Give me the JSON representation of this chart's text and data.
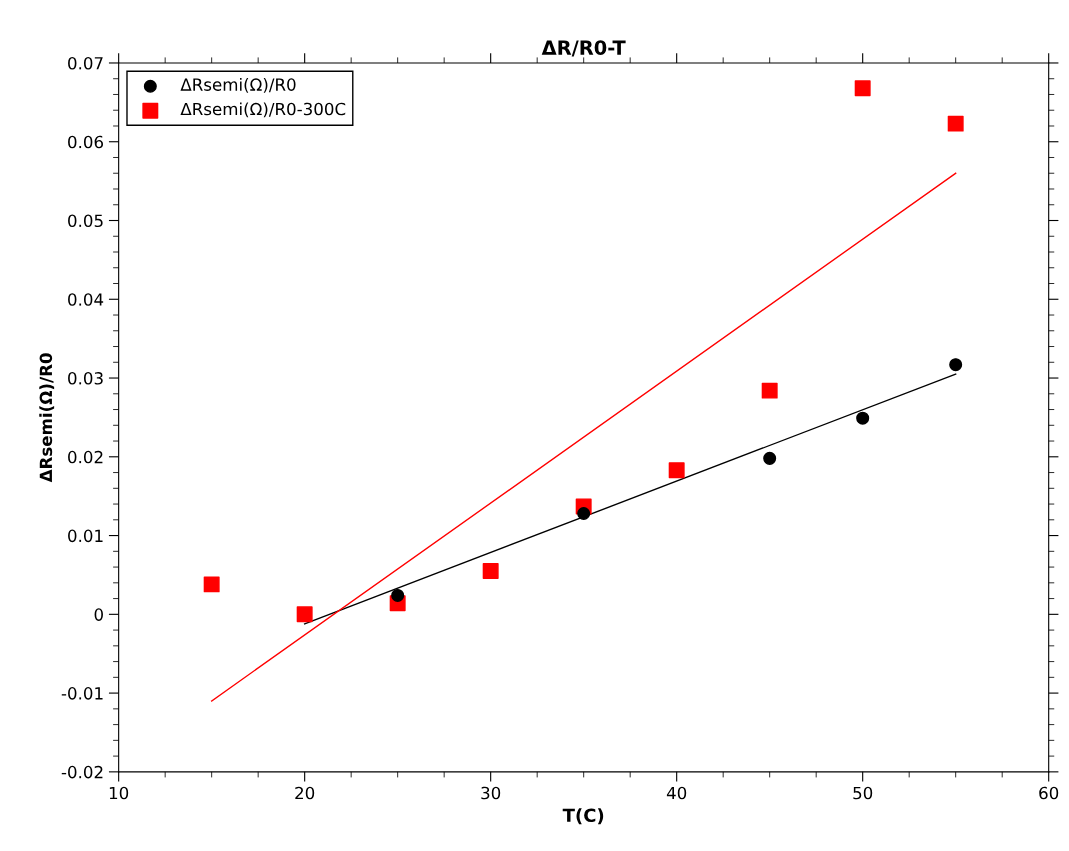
{
  "chart_data": {
    "type": "scatter",
    "title": "ΔR/R0-T",
    "xlabel": "T(C)",
    "ylabel": "ΔRsemi(Ω)/R0",
    "x": [
      15,
      20,
      25,
      30,
      35,
      40,
      45,
      50,
      55
    ],
    "series": [
      {
        "name": "ΔRsemi(Ω)/R0",
        "color": "#000000",
        "marker": "circle",
        "x": [
          25,
          35,
          45,
          50,
          55
        ],
        "values": [
          0.0024,
          0.0128,
          0.0198,
          0.0249,
          0.0317
        ]
      },
      {
        "name": "ΔRsemi(Ω)/R0-300C",
        "color": "#ff0000",
        "marker": "square",
        "values": [
          0.0038,
          0.0,
          0.0014,
          0.0055,
          0.0137,
          0.0183,
          0.0284,
          0.0668,
          0.0623
        ]
      },
      {
        "type": "line",
        "color": "#000000",
        "marker": "none",
        "x": [
          20,
          55
        ],
        "values": [
          -0.0012,
          0.0305
        ]
      },
      {
        "type": "line",
        "color": "#ff0000",
        "marker": "none",
        "x": [
          15,
          55
        ],
        "values": [
          -0.011,
          0.056
        ]
      }
    ],
    "xlim": [
      10,
      60
    ],
    "xticks": [
      10,
      20,
      30,
      40,
      50,
      60
    ],
    "ylim": [
      -0.02,
      0.07
    ],
    "yticks": [
      -0.02,
      -0.01,
      0,
      0.01,
      0.02,
      0.03,
      0.04,
      0.05,
      0.06,
      0.07
    ],
    "grid": false,
    "legend": "top left"
  }
}
